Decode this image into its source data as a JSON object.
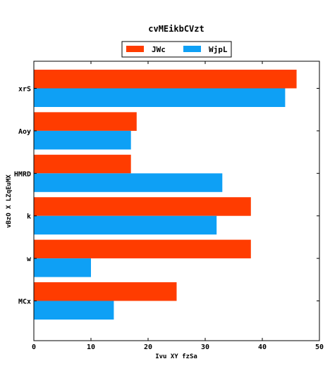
{
  "chart_data": {
    "type": "bar",
    "orientation": "horizontal",
    "title": "cvMEikbCVzt",
    "xlabel": "Ivu XY fzSa",
    "ylabel": "vBzO X LZqEuMX",
    "categories": [
      "xrS",
      "Aoy",
      "HMRD",
      "k",
      "w",
      "MCx"
    ],
    "series": [
      {
        "name": "JWc",
        "color": "#ff3c00",
        "values": [
          46,
          18,
          17,
          38,
          38,
          25
        ]
      },
      {
        "name": "WjpL",
        "color": "#0ea0f5",
        "values": [
          44,
          17,
          33,
          32,
          10,
          14
        ]
      }
    ],
    "xlim": [
      0,
      50
    ],
    "xticks": [
      "0",
      "10",
      "20",
      "30",
      "40",
      "50"
    ],
    "grid": false,
    "legend": "top-center"
  }
}
